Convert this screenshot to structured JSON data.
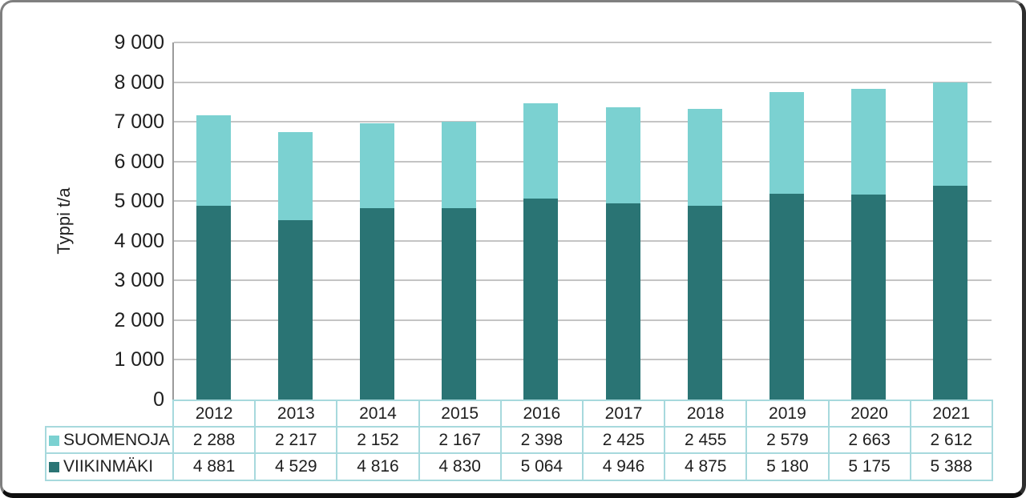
{
  "chart_data": {
    "type": "bar",
    "stacked": true,
    "categories": [
      "2012",
      "2013",
      "2014",
      "2015",
      "2016",
      "2017",
      "2018",
      "2019",
      "2020",
      "2021"
    ],
    "series": [
      {
        "name": "SUOMENOJA",
        "color": "#7BD1D1",
        "values": [
          2288,
          2217,
          2152,
          2167,
          2398,
          2425,
          2455,
          2579,
          2663,
          2612
        ]
      },
      {
        "name": "VIIKINMÄKI",
        "color": "#2A7474",
        "values": [
          4881,
          4529,
          4816,
          4830,
          5064,
          4946,
          4875,
          5180,
          5175,
          5388
        ]
      }
    ],
    "stack_order_bottom_to_top": [
      "VIIKINMÄKI",
      "SUOMENOJA"
    ],
    "title": "",
    "xlabel": "",
    "ylabel": "Typpi t/a",
    "ylim": [
      0,
      9000
    ],
    "ytick_step": 1000,
    "y_tick_labels": [
      "0",
      "1 000",
      "2 000",
      "3 000",
      "4 000",
      "5 000",
      "6 000",
      "7 000",
      "8 000",
      "9 000"
    ],
    "grid": true,
    "legend_position": "table-rows-left",
    "number_format": "space-thousands"
  },
  "colors": {
    "suomenoja": "#7BD1D1",
    "viikinmaki": "#2A7474",
    "table_border": "#A7D9DD",
    "gridline": "#C4C4C4",
    "axis_line": "#9B9B9B",
    "text": "#1F1F1F"
  }
}
